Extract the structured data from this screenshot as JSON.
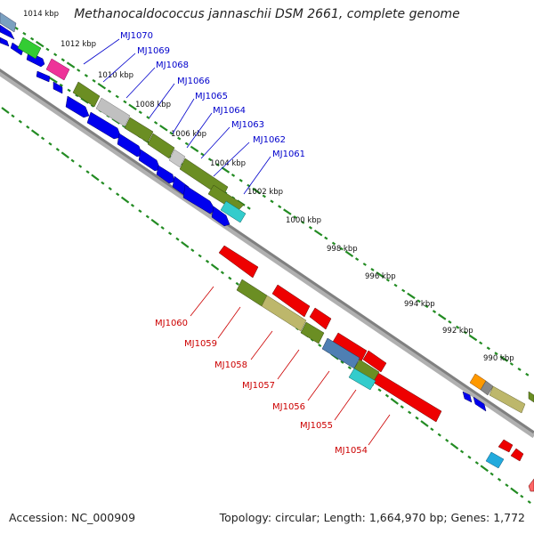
{
  "title": "Methanocaldococcus jannaschii DSM 2661, complete genome",
  "footer": {
    "accession": "Accession: NC_000909",
    "summary": "Topology: circular; Length: 1,664,970 bp; Genes: 1,772"
  },
  "colors": {
    "backbone": "#808080",
    "forward_gene": "#0000ee",
    "reverse_gene": "#ee0000",
    "label_forward": "#0000cc",
    "label_reverse": "#cc0000",
    "ruler_dots": "#228b22"
  },
  "ruler": {
    "labels": [
      "1014 kbp",
      "1012 kbp",
      "1010 kbp",
      "1008 kbp",
      "1006 kbp",
      "1004 kbp",
      "1002 kbp",
      "1000 kbp",
      "998 kbp",
      "996 kbp",
      "994 kbp",
      "992 kbp",
      "990 kbp"
    ]
  },
  "forward_genes": {
    "labels": [
      "MJ1070",
      "MJ1069",
      "MJ1068",
      "MJ1066",
      "MJ1065",
      "MJ1064",
      "MJ1063",
      "MJ1062",
      "MJ1061"
    ]
  },
  "reverse_genes": {
    "labels": [
      "MJ1060",
      "MJ1059",
      "MJ1058",
      "MJ1057",
      "MJ1056",
      "MJ1055",
      "MJ1054"
    ]
  }
}
